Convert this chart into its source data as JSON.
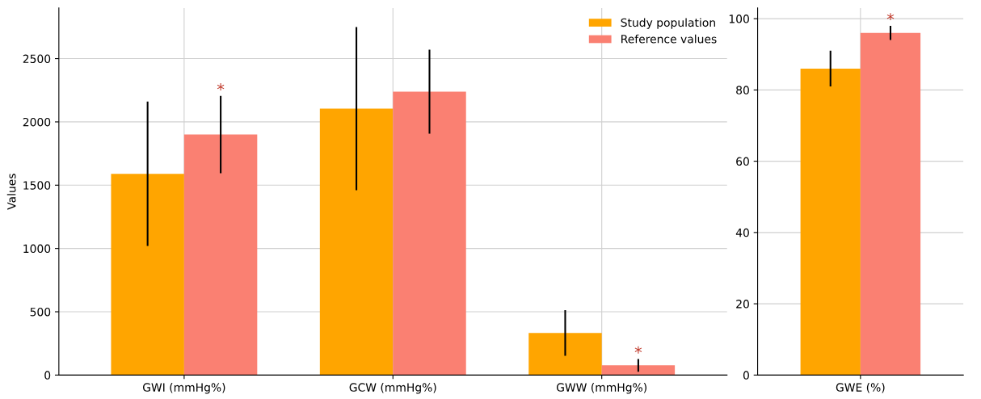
{
  "chart_data": [
    {
      "type": "bar",
      "ylabel": "Values",
      "categories": [
        "GWI (mmHg%)",
        "GCW (mmHg%)",
        "GWW (mmHg%)"
      ],
      "series": [
        {
          "name": "Study population",
          "color": "#ffa500",
          "values": [
            1590,
            2105,
            332
          ],
          "errors": [
            570,
            645,
            180
          ]
        },
        {
          "name": "Reference values",
          "color": "#fa8072",
          "values": [
            1900,
            2239,
            77
          ],
          "errors": [
            305,
            332,
            50
          ],
          "value_labels": [
            "*",
            null,
            "*"
          ]
        }
      ],
      "ylim": [
        0,
        2900
      ],
      "yticks": [
        0,
        500,
        1000,
        1500,
        2000,
        2500
      ],
      "grid": true,
      "legend": "top right"
    },
    {
      "type": "bar",
      "categories": [
        "GWE (%)"
      ],
      "series": [
        {
          "color": "#ffa500",
          "values": [
            86
          ],
          "errors": [
            5
          ]
        },
        {
          "color": "#fa8072",
          "values": [
            96
          ],
          "errors": [
            2
          ],
          "value_labels": [
            "*"
          ]
        }
      ],
      "ylim": [
        0,
        103
      ],
      "yticks": [
        0,
        20,
        40,
        60,
        80,
        100
      ],
      "grid": true
    }
  ]
}
